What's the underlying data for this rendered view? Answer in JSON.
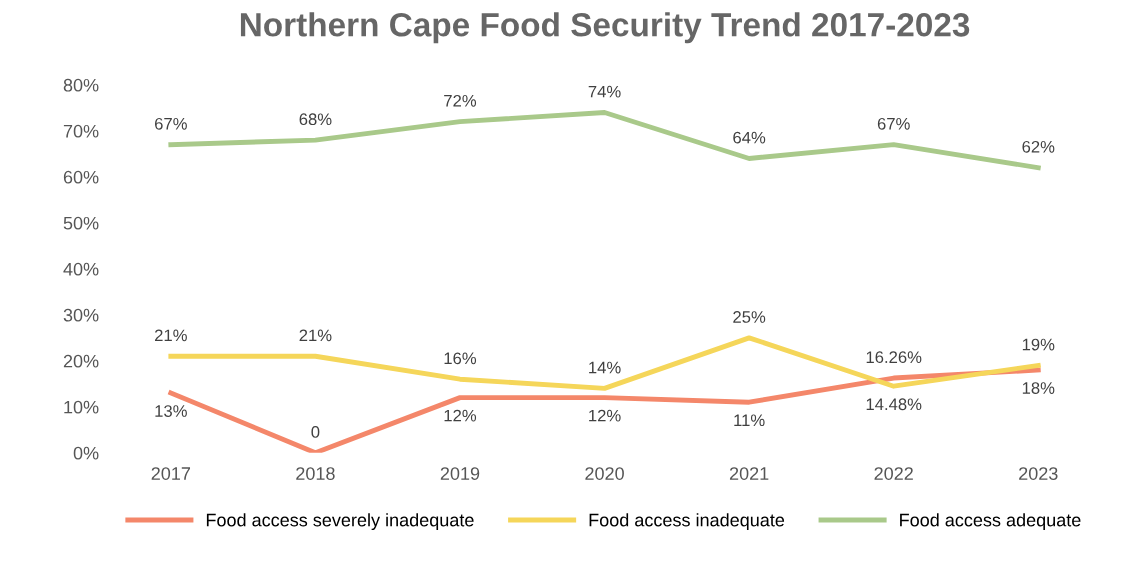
{
  "chart_data": {
    "type": "line",
    "title": "Northern Cape Food Security Trend 2017-2023",
    "categories": [
      "2017",
      "2018",
      "2019",
      "2020",
      "2021",
      "2022",
      "2023"
    ],
    "series": [
      {
        "name": "Food access severely inadequate",
        "color": "#f4876a",
        "values": [
          13,
          0,
          12,
          12,
          11,
          16.26,
          18
        ],
        "value_labels": [
          "13%",
          "0",
          "12%",
          "12%",
          "11%",
          "16.26%",
          "18%"
        ]
      },
      {
        "name": "Food access inadequate",
        "color": "#f5d65a",
        "values": [
          21,
          21,
          16,
          14,
          25,
          14.48,
          19
        ],
        "value_labels": [
          "21%",
          "21%",
          "16%",
          "14%",
          "25%",
          "14.48%",
          "19%"
        ]
      },
      {
        "name": "Food access adequate",
        "color": "#a9c98a",
        "values": [
          67,
          68,
          72,
          74,
          64,
          67,
          62
        ],
        "value_labels": [
          "67%",
          "68%",
          "72%",
          "74%",
          "64%",
          "67%",
          "62%"
        ]
      }
    ],
    "ylim": [
      0,
      80
    ],
    "yticks": [
      {
        "value": 0,
        "label": "0%"
      },
      {
        "value": 10,
        "label": "10%"
      },
      {
        "value": 20,
        "label": "20%"
      },
      {
        "value": 30,
        "label": "30%"
      },
      {
        "value": 40,
        "label": "40%"
      },
      {
        "value": 50,
        "label": "50%"
      },
      {
        "value": 60,
        "label": "60%"
      },
      {
        "value": 70,
        "label": "70%"
      },
      {
        "value": 80,
        "label": "80%"
      }
    ],
    "grid": false,
    "legend": "bottom",
    "marker": "none",
    "line_style": "solid"
  }
}
